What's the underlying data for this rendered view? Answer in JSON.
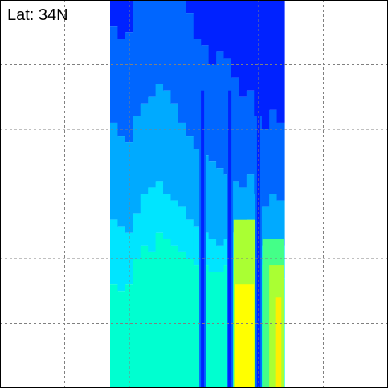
{
  "chart_data": {
    "type": "heatmap",
    "annotation": "Lat: 34N",
    "grid": true,
    "grid_color": "#808080",
    "background": "#ffffff",
    "colormap": [
      "#0022ff",
      "#0066ff",
      "#00aaff",
      "#00e5ff",
      "#00ffd0",
      "#44ff88",
      "#aaff33",
      "#ffff00",
      "#ffee00"
    ],
    "field_description_levels": [
      0,
      1,
      2,
      3,
      4,
      5,
      6,
      7,
      8
    ],
    "columns": [
      {
        "level_bounds": [
          5.6,
          4.1,
          2.6,
          1.6
        ]
      },
      {
        "level_bounds": [
          5.4,
          3.9,
          2.5,
          1.5
        ]
      },
      {
        "level_bounds": [
          5.5,
          3.8,
          2.4,
          1.6
        ]
      },
      {
        "level_bounds": [
          6.2,
          4.2,
          2.7,
          2.0
        ]
      },
      {
        "level_bounds": [
          6.6,
          4.4,
          3.0,
          2.2
        ]
      },
      {
        "level_bounds": [
          6.4,
          4.5,
          3.1,
          2.1
        ]
      },
      {
        "level_bounds": [
          6.8,
          4.7,
          3.2,
          2.4
        ]
      },
      {
        "level_bounds": [
          6.9,
          4.6,
          3.0,
          2.3
        ]
      },
      {
        "level_bounds": [
          6.6,
          4.4,
          2.9,
          2.2
        ]
      },
      {
        "level_bounds": [
          6.2,
          4.1,
          2.8,
          2.1
        ]
      },
      {
        "level_bounds": [
          5.8,
          3.9,
          2.6,
          2.0
        ]
      },
      {
        "level_bounds": [
          5.4,
          3.7,
          2.5,
          1.9
        ]
      },
      {
        "level_bounds": [
          5.3,
          3.6,
          2.4,
          1.9
        ]
      },
      {
        "level_bounds": [
          5.0,
          3.5,
          2.3,
          1.8
        ]
      },
      {
        "level_bounds": [
          5.2,
          3.4,
          2.2,
          1.8
        ]
      },
      {
        "level_bounds": [
          5.1,
          3.3,
          2.3,
          1.9
        ]
      },
      {
        "level_bounds": [
          4.8,
          3.2,
          2.4,
          2.0
        ]
      },
      {
        "level_bounds": [
          4.5,
          3.1,
          2.5,
          2.1
        ]
      },
      {
        "level_bounds": [
          4.6,
          3.3,
          2.6,
          2.2
        ]
      },
      {
        "level_bounds": [
          4.2,
          3.0,
          2.4,
          2.0
        ]
      },
      {
        "level_bounds": [
          4.0,
          2.8,
          2.2,
          1.9
        ]
      },
      {
        "level_bounds": [
          4.3,
          3.0,
          2.3,
          1.8
        ]
      },
      {
        "level_bounds": [
          4.1,
          2.9,
          2.2,
          1.7
        ]
      }
    ],
    "troughs_at_column": [
      12.2,
      15.8,
      19.6
    ],
    "x_range": [
      0,
      6
    ],
    "y_range": [
      0,
      6
    ]
  }
}
